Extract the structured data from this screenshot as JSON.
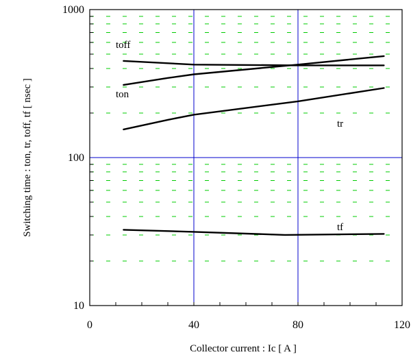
{
  "chart_data": {
    "type": "line",
    "title": "",
    "xlabel": "Collector current : Ic [ A ]",
    "ylabel": "Switching time : ton, tr, toff, tf [ nsec ]",
    "xlim": [
      0,
      120
    ],
    "ylim": [
      10,
      1000
    ],
    "yscale": "log",
    "x_ticks": [
      "0",
      "40",
      "80",
      "120"
    ],
    "x_tick_values": [
      0,
      40,
      80,
      120
    ],
    "y_ticks": [
      "10",
      "100",
      "1000"
    ],
    "y_tick_values": [
      10,
      100,
      1000
    ],
    "major_grid_color": "#0000cc",
    "minor_grid_color": "#00cc00",
    "series": [
      {
        "name": "toff",
        "x": [
          13,
          40,
          80,
          113
        ],
        "y": [
          450,
          425,
          420,
          420
        ]
      },
      {
        "name": "ton",
        "x": [
          13,
          30,
          40,
          80,
          113
        ],
        "y": [
          310,
          345,
          365,
          425,
          485
        ]
      },
      {
        "name": "tr",
        "x": [
          13,
          30,
          40,
          80,
          113
        ],
        "y": [
          155,
          180,
          195,
          240,
          295
        ]
      },
      {
        "name": "tf",
        "x": [
          13,
          40,
          75,
          113
        ],
        "y": [
          32.5,
          31.5,
          30,
          30.5
        ]
      }
    ],
    "series_labels": [
      {
        "text": "toff",
        "x": 10,
        "y": 580
      },
      {
        "text": "ton",
        "x": 10,
        "y": 270
      },
      {
        "text": "tr",
        "x": 95,
        "y": 170
      },
      {
        "text": "tf",
        "x": 95,
        "y": 34
      }
    ]
  }
}
